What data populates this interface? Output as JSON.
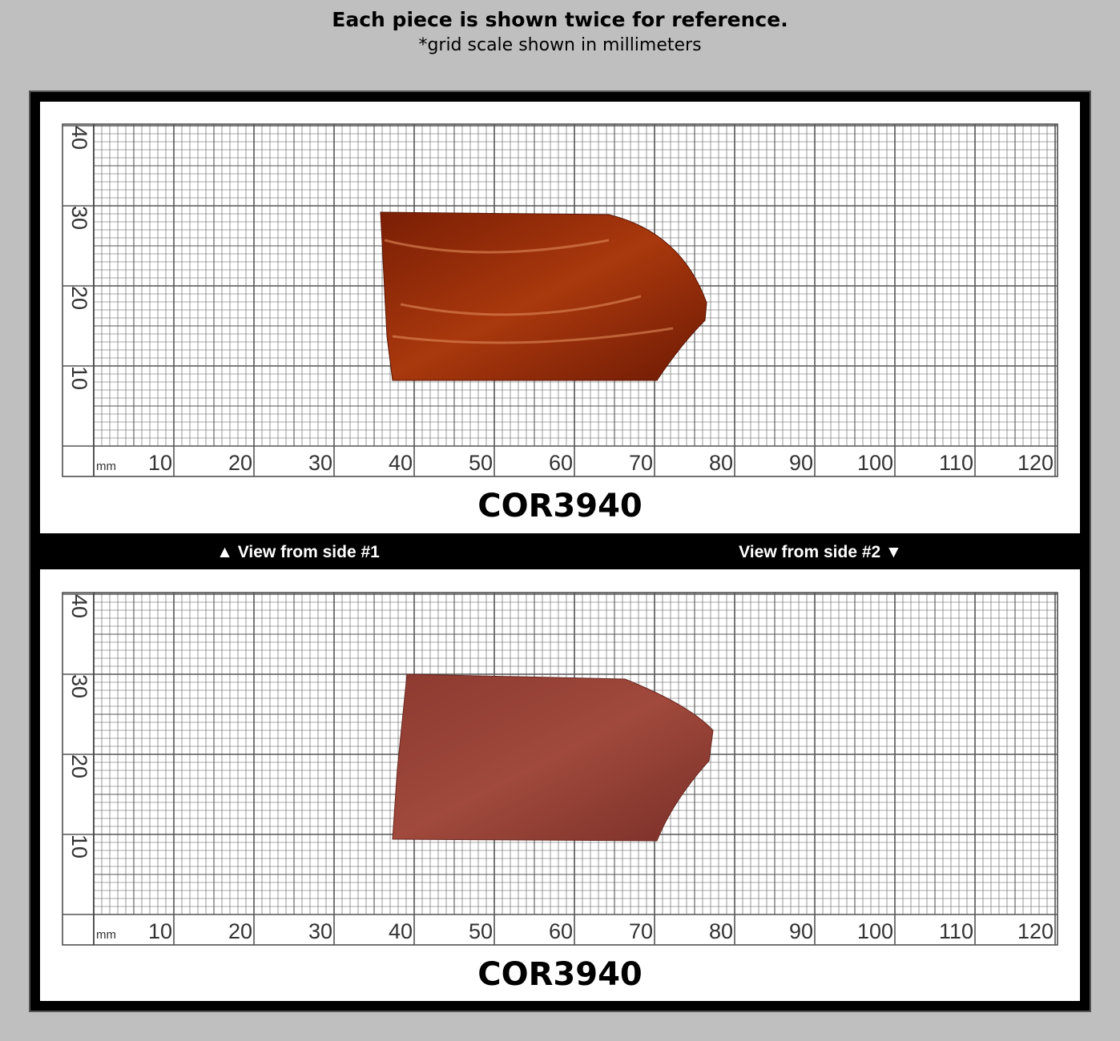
{
  "header": {
    "title": "Each piece is shown twice for reference.",
    "subtitle": "*grid scale shown in millimeters"
  },
  "panels": [
    {
      "code": "COR3940",
      "y_labels": [
        "40",
        "30",
        "20",
        "10"
      ],
      "x_unit": "mm",
      "x_labels": [
        "10",
        "20",
        "30",
        "40",
        "50",
        "60",
        "70",
        "80",
        "90",
        "100",
        "110",
        "120"
      ]
    },
    {
      "code": "COR3940",
      "y_labels": [
        "40",
        "30",
        "20",
        "10"
      ],
      "x_unit": "mm",
      "x_labels": [
        "10",
        "20",
        "30",
        "40",
        "50",
        "60",
        "70",
        "80",
        "90",
        "100",
        "110",
        "120"
      ]
    }
  ],
  "divider": {
    "left": "▲ View from side #1",
    "right": "View from side #2 ▼"
  }
}
